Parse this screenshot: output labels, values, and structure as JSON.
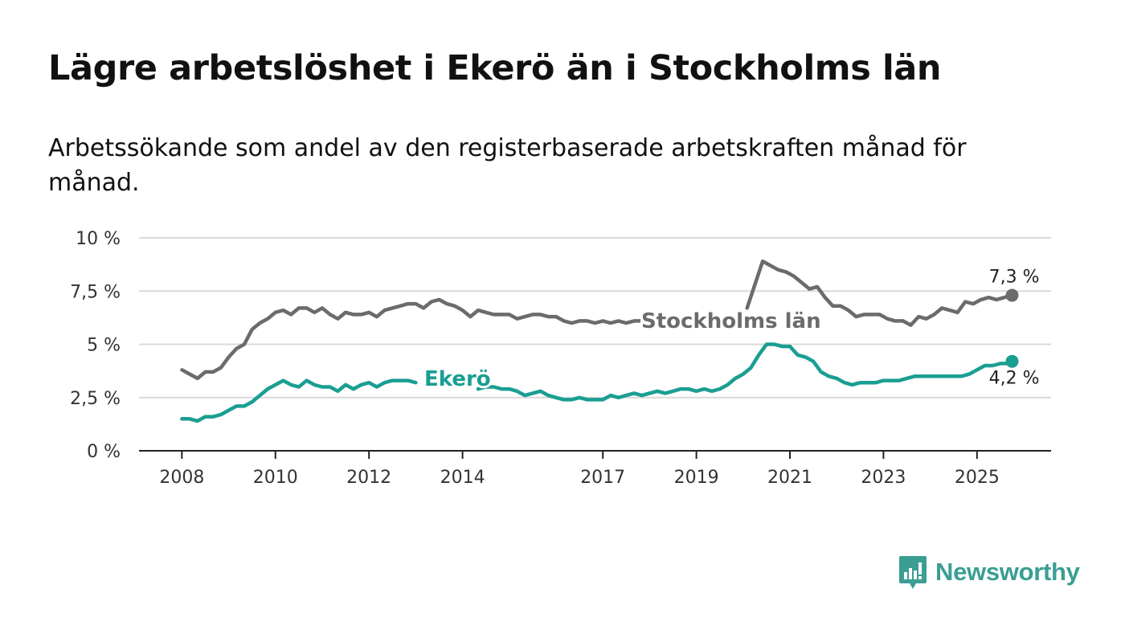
{
  "title": "Lägre arbetslöshet i Ekerö än i Stockholms län",
  "subtitle": "Arbetssökande som andel av den registerbaserade arbetskraften månad för månad.",
  "brand": {
    "name": "Newsworthy",
    "color": "#3a9e93",
    "icon": "bar-chart-speech-bubble-icon"
  },
  "chart_data": {
    "type": "line",
    "x_tick_labels": [
      "2008",
      "2010",
      "2012",
      "2014",
      "2017",
      "2019",
      "2021",
      "2023",
      "2025"
    ],
    "y_ticks": [
      0,
      2.5,
      5,
      7.5,
      10
    ],
    "y_tick_labels": [
      "0 %",
      "2,5 %",
      "5 %",
      "7,5 %",
      "10 %"
    ],
    "ylim": [
      0,
      10
    ],
    "xlim": [
      "2007-02",
      "2026-08"
    ],
    "grid": true,
    "legend": "direct labels on lines",
    "series": [
      {
        "name": "Stockholms län",
        "color": "#6b6b6e",
        "end_label": "7,3 %",
        "points": [
          [
            "2008-01",
            3.8
          ],
          [
            "2008-03",
            3.6
          ],
          [
            "2008-05",
            3.4
          ],
          [
            "2008-07",
            3.7
          ],
          [
            "2008-09",
            3.7
          ],
          [
            "2008-11",
            3.9
          ],
          [
            "2009-01",
            4.4
          ],
          [
            "2009-03",
            4.8
          ],
          [
            "2009-05",
            5.0
          ],
          [
            "2009-07",
            5.7
          ],
          [
            "2009-09",
            6.0
          ],
          [
            "2009-11",
            6.2
          ],
          [
            "2010-01",
            6.5
          ],
          [
            "2010-03",
            6.6
          ],
          [
            "2010-05",
            6.4
          ],
          [
            "2010-07",
            6.7
          ],
          [
            "2010-09",
            6.7
          ],
          [
            "2010-11",
            6.5
          ],
          [
            "2011-01",
            6.7
          ],
          [
            "2011-03",
            6.4
          ],
          [
            "2011-05",
            6.2
          ],
          [
            "2011-07",
            6.5
          ],
          [
            "2011-09",
            6.4
          ],
          [
            "2011-11",
            6.4
          ],
          [
            "2012-01",
            6.5
          ],
          [
            "2012-03",
            6.3
          ],
          [
            "2012-05",
            6.6
          ],
          [
            "2012-07",
            6.7
          ],
          [
            "2012-09",
            6.8
          ],
          [
            "2012-11",
            6.9
          ],
          [
            "2013-01",
            6.9
          ],
          [
            "2013-03",
            6.7
          ],
          [
            "2013-05",
            7.0
          ],
          [
            "2013-07",
            7.1
          ],
          [
            "2013-09",
            6.9
          ],
          [
            "2013-11",
            6.8
          ],
          [
            "2014-01",
            6.6
          ],
          [
            "2014-03",
            6.3
          ],
          [
            "2014-05",
            6.6
          ],
          [
            "2014-07",
            6.5
          ],
          [
            "2014-09",
            6.4
          ],
          [
            "2014-11",
            6.4
          ],
          [
            "2015-01",
            6.4
          ],
          [
            "2015-03",
            6.2
          ],
          [
            "2015-05",
            6.3
          ],
          [
            "2015-07",
            6.4
          ],
          [
            "2015-09",
            6.4
          ],
          [
            "2015-11",
            6.3
          ],
          [
            "2016-01",
            6.3
          ],
          [
            "2016-03",
            6.1
          ],
          [
            "2016-05",
            6.0
          ],
          [
            "2016-07",
            6.1
          ],
          [
            "2016-09",
            6.1
          ],
          [
            "2016-11",
            6.0
          ],
          [
            "2017-01",
            6.1
          ],
          [
            "2017-03",
            6.0
          ],
          [
            "2017-05",
            6.1
          ],
          [
            "2017-07",
            6.0
          ],
          [
            "2017-09",
            6.1
          ],
          [
            "2017-11",
            6.1
          ],
          [
            "2020-02",
            6.7
          ],
          [
            "2020-04",
            7.8
          ],
          [
            "2020-06",
            8.9
          ],
          [
            "2020-08",
            8.7
          ],
          [
            "2020-10",
            8.5
          ],
          [
            "2020-12",
            8.4
          ],
          [
            "2021-02",
            8.2
          ],
          [
            "2021-04",
            7.9
          ],
          [
            "2021-06",
            7.6
          ],
          [
            "2021-08",
            7.7
          ],
          [
            "2021-10",
            7.2
          ],
          [
            "2021-12",
            6.8
          ],
          [
            "2022-02",
            6.8
          ],
          [
            "2022-04",
            6.6
          ],
          [
            "2022-06",
            6.3
          ],
          [
            "2022-08",
            6.4
          ],
          [
            "2022-10",
            6.4
          ],
          [
            "2022-12",
            6.4
          ],
          [
            "2023-02",
            6.2
          ],
          [
            "2023-04",
            6.1
          ],
          [
            "2023-06",
            6.1
          ],
          [
            "2023-08",
            5.9
          ],
          [
            "2023-10",
            6.3
          ],
          [
            "2023-12",
            6.2
          ],
          [
            "2024-02",
            6.4
          ],
          [
            "2024-04",
            6.7
          ],
          [
            "2024-06",
            6.6
          ],
          [
            "2024-08",
            6.5
          ],
          [
            "2024-10",
            7.0
          ],
          [
            "2024-12",
            6.9
          ],
          [
            "2025-02",
            7.1
          ],
          [
            "2025-04",
            7.2
          ],
          [
            "2025-06",
            7.1
          ],
          [
            "2025-08",
            7.2
          ],
          [
            "2025-10",
            7.3
          ]
        ]
      },
      {
        "name": "Ekerö",
        "color": "#1a9e92",
        "end_label": "4,2 %",
        "points": [
          [
            "2008-01",
            1.5
          ],
          [
            "2008-03",
            1.5
          ],
          [
            "2008-05",
            1.4
          ],
          [
            "2008-07",
            1.6
          ],
          [
            "2008-09",
            1.6
          ],
          [
            "2008-11",
            1.7
          ],
          [
            "2009-01",
            1.9
          ],
          [
            "2009-03",
            2.1
          ],
          [
            "2009-05",
            2.1
          ],
          [
            "2009-07",
            2.3
          ],
          [
            "2009-09",
            2.6
          ],
          [
            "2009-11",
            2.9
          ],
          [
            "2010-01",
            3.1
          ],
          [
            "2010-03",
            3.3
          ],
          [
            "2010-05",
            3.1
          ],
          [
            "2010-07",
            3.0
          ],
          [
            "2010-09",
            3.3
          ],
          [
            "2010-11",
            3.1
          ],
          [
            "2011-01",
            3.0
          ],
          [
            "2011-03",
            3.0
          ],
          [
            "2011-05",
            2.8
          ],
          [
            "2011-07",
            3.1
          ],
          [
            "2011-09",
            2.9
          ],
          [
            "2011-11",
            3.1
          ],
          [
            "2012-01",
            3.2
          ],
          [
            "2012-03",
            3.0
          ],
          [
            "2012-05",
            3.2
          ],
          [
            "2012-07",
            3.3
          ],
          [
            "2012-09",
            3.3
          ],
          [
            "2012-11",
            3.3
          ],
          [
            "2013-01",
            3.2
          ],
          [
            "2014-05",
            2.9
          ],
          [
            "2014-07",
            3.0
          ],
          [
            "2014-09",
            3.0
          ],
          [
            "2014-11",
            2.9
          ],
          [
            "2015-01",
            2.9
          ],
          [
            "2015-03",
            2.8
          ],
          [
            "2015-05",
            2.6
          ],
          [
            "2015-07",
            2.7
          ],
          [
            "2015-09",
            2.8
          ],
          [
            "2015-11",
            2.6
          ],
          [
            "2016-01",
            2.5
          ],
          [
            "2016-03",
            2.4
          ],
          [
            "2016-05",
            2.4
          ],
          [
            "2016-07",
            2.5
          ],
          [
            "2016-09",
            2.4
          ],
          [
            "2016-11",
            2.4
          ],
          [
            "2017-01",
            2.4
          ],
          [
            "2017-03",
            2.6
          ],
          [
            "2017-05",
            2.5
          ],
          [
            "2017-07",
            2.6
          ],
          [
            "2017-09",
            2.7
          ],
          [
            "2017-11",
            2.6
          ],
          [
            "2018-01",
            2.7
          ],
          [
            "2018-03",
            2.8
          ],
          [
            "2018-05",
            2.7
          ],
          [
            "2018-07",
            2.8
          ],
          [
            "2018-09",
            2.9
          ],
          [
            "2018-11",
            2.9
          ],
          [
            "2019-01",
            2.8
          ],
          [
            "2019-03",
            2.9
          ],
          [
            "2019-05",
            2.8
          ],
          [
            "2019-07",
            2.9
          ],
          [
            "2019-09",
            3.1
          ],
          [
            "2019-11",
            3.4
          ],
          [
            "2020-01",
            3.6
          ],
          [
            "2020-03",
            3.9
          ],
          [
            "2020-05",
            4.5
          ],
          [
            "2020-07",
            5.0
          ],
          [
            "2020-09",
            5.0
          ],
          [
            "2020-11",
            4.9
          ],
          [
            "2021-01",
            4.9
          ],
          [
            "2021-03",
            4.5
          ],
          [
            "2021-05",
            4.4
          ],
          [
            "2021-07",
            4.2
          ],
          [
            "2021-09",
            3.7
          ],
          [
            "2021-11",
            3.5
          ],
          [
            "2022-01",
            3.4
          ],
          [
            "2022-03",
            3.2
          ],
          [
            "2022-05",
            3.1
          ],
          [
            "2022-07",
            3.2
          ],
          [
            "2022-09",
            3.2
          ],
          [
            "2022-11",
            3.2
          ],
          [
            "2023-01",
            3.3
          ],
          [
            "2023-03",
            3.3
          ],
          [
            "2023-05",
            3.3
          ],
          [
            "2023-07",
            3.4
          ],
          [
            "2023-09",
            3.5
          ],
          [
            "2023-11",
            3.5
          ],
          [
            "2024-01",
            3.5
          ],
          [
            "2024-03",
            3.5
          ],
          [
            "2024-05",
            3.5
          ],
          [
            "2024-07",
            3.5
          ],
          [
            "2024-09",
            3.5
          ],
          [
            "2024-11",
            3.6
          ],
          [
            "2025-01",
            3.8
          ],
          [
            "2025-03",
            4.0
          ],
          [
            "2025-05",
            4.0
          ],
          [
            "2025-07",
            4.1
          ],
          [
            "2025-09",
            4.1
          ],
          [
            "2025-10",
            4.2
          ]
        ]
      }
    ]
  }
}
